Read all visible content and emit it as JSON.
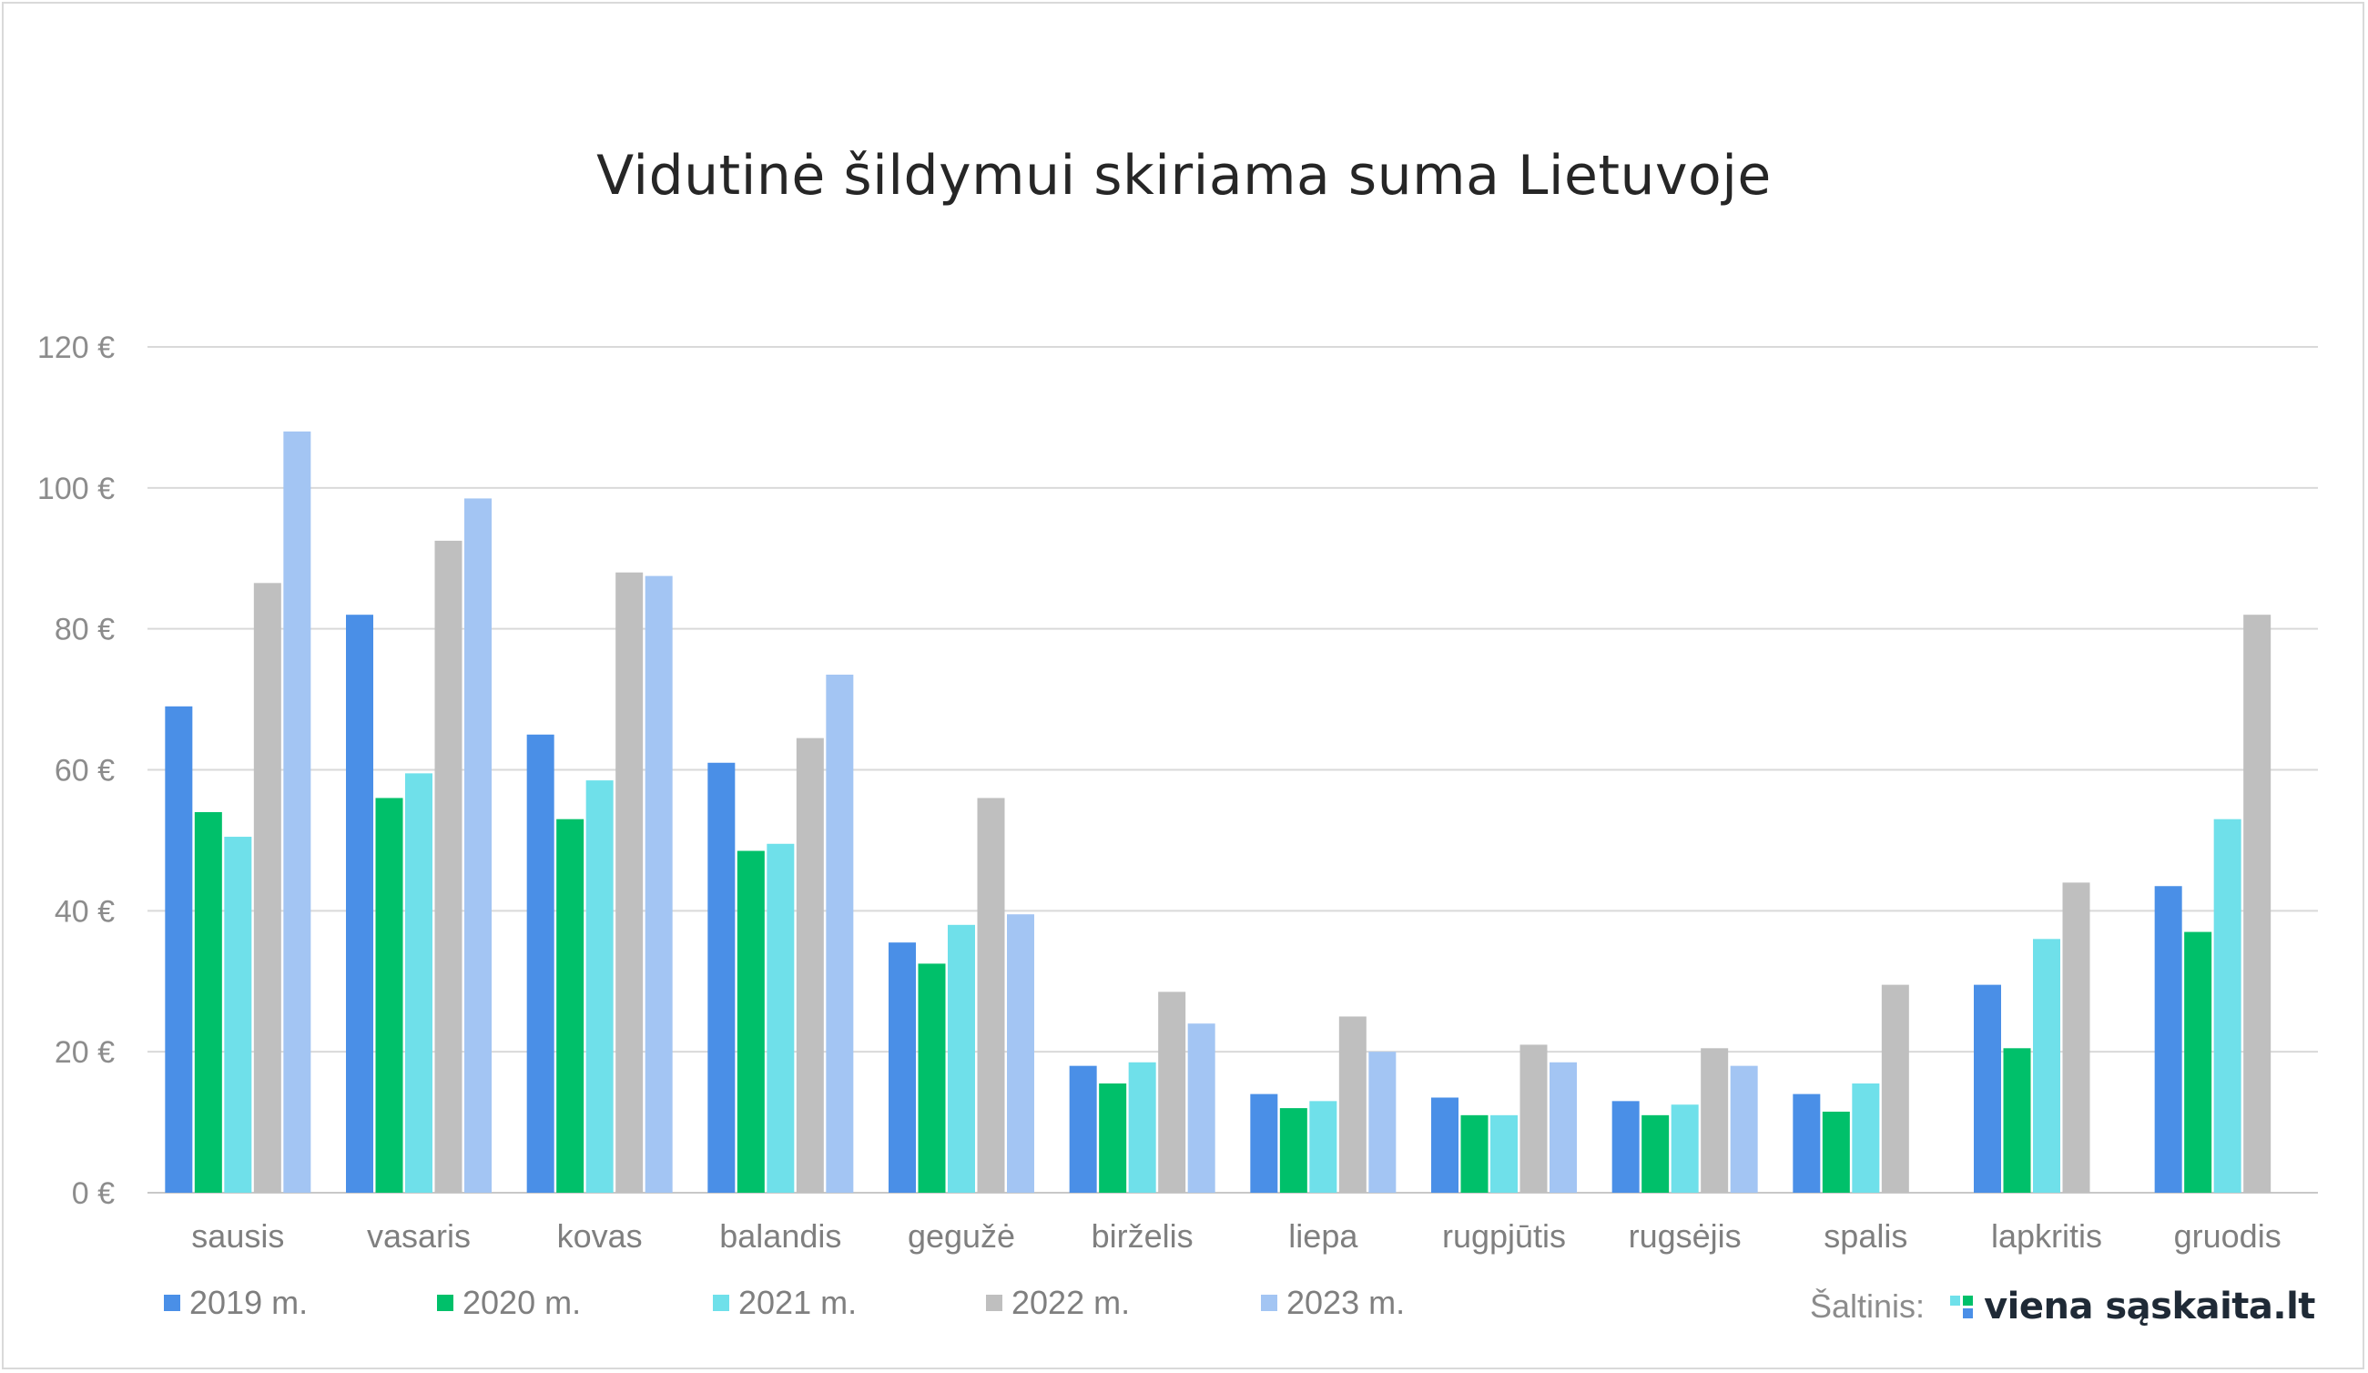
{
  "title": "Vidutinė šildymui skiriama suma Lietuvoje",
  "source": {
    "label": "Šaltinis:",
    "logo_text": "viena sąskaita.lt",
    "logo_colors": [
      "#6fe0ea",
      "#00c06a",
      "#ffffff",
      "#4a8fe7"
    ]
  },
  "chart_data": {
    "type": "bar",
    "title": "Vidutinė šildymui skiriama suma Lietuvoje",
    "xlabel": "",
    "ylabel": "",
    "ylim": [
      0,
      120
    ],
    "yticks": [
      0,
      20,
      40,
      60,
      80,
      100,
      120
    ],
    "ytick_labels": [
      "0 €",
      "20 €",
      "40 €",
      "60 €",
      "80 €",
      "100 €",
      "120 €"
    ],
    "grid": true,
    "legend_position": "bottom-left",
    "categories": [
      "sausis",
      "vasaris",
      "kovas",
      "balandis",
      "gegužė",
      "birželis",
      "liepa",
      "rugpjūtis",
      "rugsėjis",
      "spalis",
      "lapkritis",
      "gruodis"
    ],
    "series": [
      {
        "name": "2019 m.",
        "color": "#4a8fe7",
        "values": [
          69,
          82,
          65,
          61,
          35.5,
          18,
          14,
          13.5,
          13,
          14,
          29.5,
          43.5
        ]
      },
      {
        "name": "2020 m.",
        "color": "#00c06a",
        "values": [
          54,
          56,
          53,
          48.5,
          32.5,
          15.5,
          12,
          11,
          11,
          11.5,
          20.5,
          37
        ]
      },
      {
        "name": "2021 m.",
        "color": "#6fe0ea",
        "values": [
          50.5,
          59.5,
          58.5,
          49.5,
          38,
          18.5,
          13,
          11,
          12.5,
          15.5,
          36,
          53
        ]
      },
      {
        "name": "2022 m.",
        "color": "#bfbfbf",
        "values": [
          86.5,
          92.5,
          88,
          64.5,
          56,
          28.5,
          25,
          21,
          20.5,
          29.5,
          44,
          82
        ]
      },
      {
        "name": "2023 m.",
        "color": "#a3c5f3",
        "values": [
          108,
          98.5,
          87.5,
          73.5,
          39.5,
          24,
          20,
          18.5,
          18,
          null,
          null,
          null
        ]
      }
    ]
  }
}
